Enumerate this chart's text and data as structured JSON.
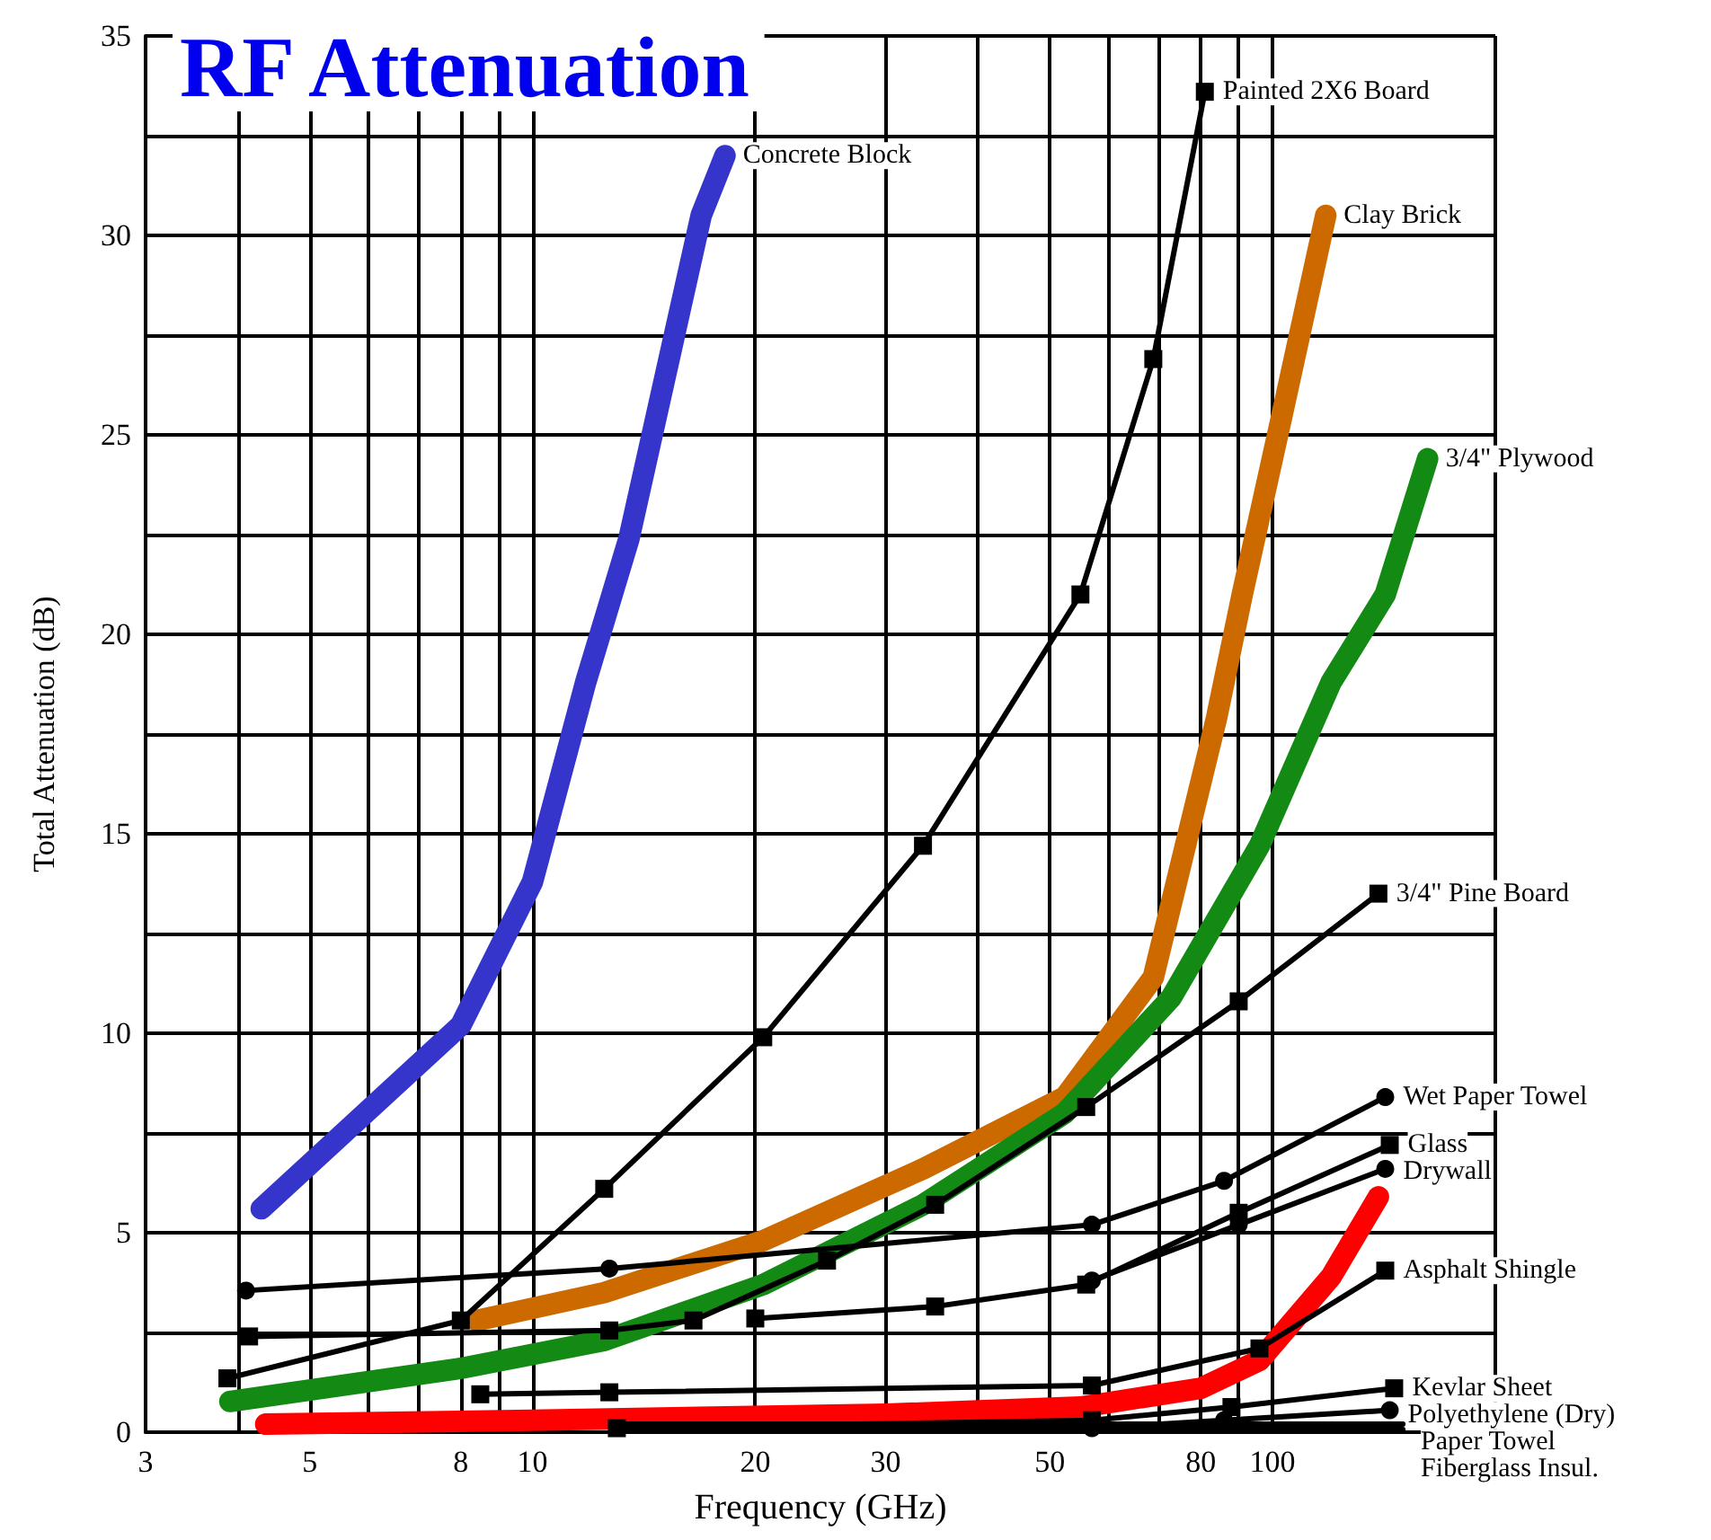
{
  "chart_data": {
    "type": "line",
    "title": "RF Attenuation",
    "xlabel": "Frequency (GHz)",
    "ylabel": "Total Attenuation (dB)",
    "log": "x",
    "grid": true,
    "legend": false,
    "xlim": [
      3,
      200
    ],
    "xticks": [
      3,
      {
        "value": 4,
        "label": null
      },
      5,
      {
        "value": 6,
        "label": null
      },
      {
        "value": 7,
        "label": null
      },
      8,
      {
        "value": 9,
        "label": null
      },
      10,
      20,
      30,
      {
        "value": 40,
        "label": null
      },
      50,
      {
        "value": 60,
        "label": null
      },
      {
        "value": 70,
        "label": null
      },
      80,
      {
        "value": 90,
        "label": null
      },
      100,
      {
        "value": 200,
        "label": null
      }
    ],
    "ylim": [
      0,
      35
    ],
    "yticks": [
      0,
      {
        "value": 2.5,
        "label": null
      },
      5,
      {
        "value": 7.5,
        "label": null
      },
      10,
      {
        "value": 12.5,
        "label": null
      },
      15,
      {
        "value": 17.5,
        "label": null
      },
      20,
      {
        "value": 22.5,
        "label": null
      },
      25,
      {
        "value": 27.5,
        "label": null
      },
      30,
      {
        "value": 32.5,
        "label": null
      },
      35
    ],
    "series": [
      {
        "name": "Concrete Block",
        "color": "#3535cc",
        "marker": "none",
        "x": [
          4.3,
          8.0,
          10,
          11.8,
          13.5,
          16.9,
          18.2
        ],
        "values": [
          5.6,
          10.2,
          13.8,
          18.8,
          22.4,
          30.5,
          32
        ]
      },
      {
        "name": "Painted 2X6 Board",
        "color": "#000000",
        "marker": "square",
        "x": [
          3.87,
          8.0,
          12.5,
          20.5,
          33.7,
          55,
          69,
          81
        ],
        "values": [
          1.35,
          2.8,
          6.1,
          9.9,
          14.7,
          21,
          26.9,
          33.6
        ]
      },
      {
        "name": "Clay Brick",
        "color": "#cc6a00",
        "marker": "none",
        "x": [
          8.4,
          12.5,
          20.5,
          33.7,
          52.4,
          69,
          84,
          91,
          103,
          118
        ],
        "values": [
          2.8,
          3.5,
          4.8,
          6.6,
          8.4,
          11.4,
          17.9,
          21,
          25.5,
          30.5
        ]
      },
      {
        "name": "3/4\" Plywood",
        "color": "#138a13",
        "marker": "none",
        "x": [
          3.9,
          8.0,
          12.5,
          20.5,
          33.7,
          52.4,
          73,
          96,
          120,
          142,
          162
        ],
        "values": [
          0.77,
          1.6,
          2.3,
          3.7,
          5.7,
          8,
          10.9,
          14.7,
          18.8,
          21,
          24.4
        ]
      },
      {
        "name": "3/4\" Pine Board",
        "color": "#000000",
        "marker": "square",
        "x": [
          4.14,
          12.7,
          16.5,
          25,
          35,
          56,
          90,
          139
        ],
        "values": [
          2.4,
          2.55,
          2.8,
          4.3,
          5.7,
          8.15,
          10.8,
          13.5
        ]
      },
      {
        "name": "Wet Paper Towel",
        "color": "#000000",
        "marker": "circle",
        "x": [
          4.1,
          12.7,
          57,
          86,
          142
        ],
        "values": [
          3.55,
          4.1,
          5.2,
          6.3,
          8.4
        ]
      },
      {
        "name": "Glass",
        "color": "#000000",
        "marker": "square",
        "x": [
          20,
          35,
          56,
          90,
          144
        ],
        "values": [
          2.85,
          3.15,
          3.7,
          5.5,
          7.2
        ]
      },
      {
        "name": "Drywall",
        "color": "#000000",
        "marker": "circle",
        "x": [
          57,
          90,
          142
        ],
        "values": [
          3.8,
          5.2,
          6.6
        ]
      },
      {
        "name": "Asphalt Shingle",
        "color": "#000000",
        "marker": "square",
        "x": [
          8.5,
          12.7,
          57,
          96,
          142
        ],
        "values": [
          0.95,
          1.0,
          1.17,
          2.1,
          4.05
        ]
      },
      {
        "name": "Kevlar Sheet",
        "color": "#000000",
        "marker": "square",
        "x": [
          13,
          57,
          88,
          146
        ],
        "values": [
          0.1,
          0.3,
          0.63,
          1.1
        ]
      },
      {
        "name": "Polyethylene (Dry)",
        "color": "#000000",
        "marker": "circle",
        "x": [
          57,
          86,
          144
        ],
        "values": [
          0.1,
          0.3,
          0.55
        ]
      },
      {
        "name": "Paper Towel",
        "color": "#000000",
        "marker": "none",
        "x": [
          13,
          150
        ],
        "values": [
          0.2,
          0.2
        ]
      },
      {
        "name": "Fiberglass Insul.",
        "color": "#000000",
        "marker": "none",
        "x": [
          13,
          150
        ],
        "values": [
          0.07,
          0.07
        ]
      },
      {
        "color": "#ff0000",
        "marker": "none",
        "x": [
          4.36,
          10,
          30,
          55,
          80,
          96,
          120,
          139
        ],
        "values": [
          0.2,
          0.3,
          0.45,
          0.63,
          1.1,
          1.8,
          3.9,
          5.9
        ]
      }
    ]
  }
}
